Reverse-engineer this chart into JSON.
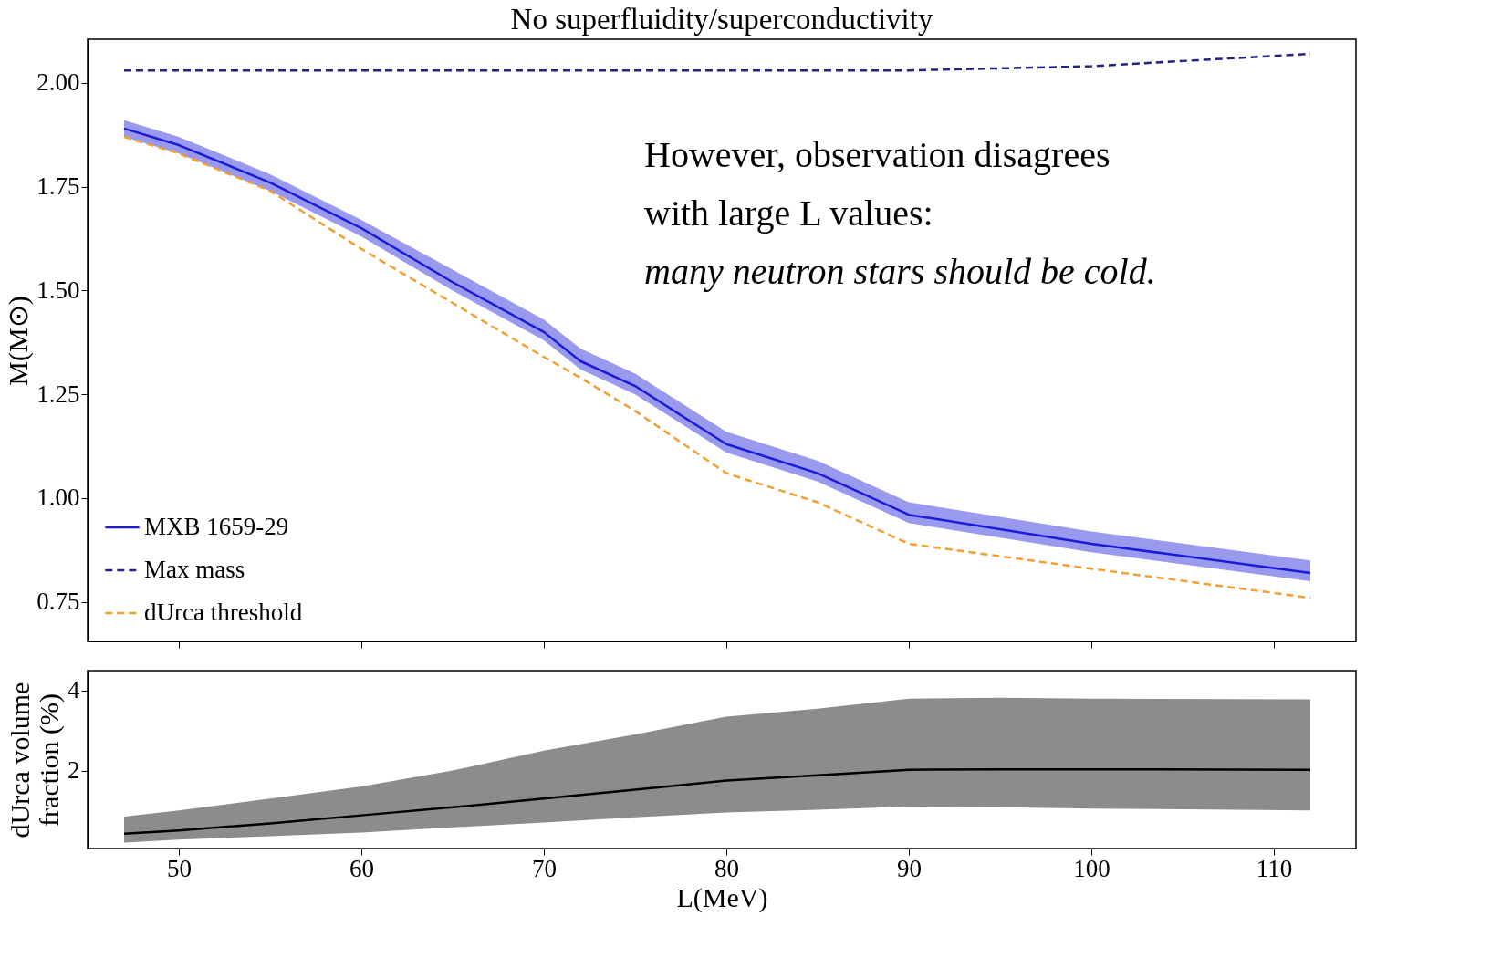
{
  "chart_data": [
    {
      "type": "line",
      "title": "No superfluidity/superconductivity",
      "ylabel": "M(M⊙)",
      "x": [
        47,
        50,
        55,
        60,
        65,
        70,
        72,
        75,
        80,
        85,
        90,
        100,
        112
      ],
      "series": [
        {
          "name": "MXB 1659-29",
          "color": "#1c1cd6",
          "line_style": "solid",
          "values": [
            1.89,
            1.85,
            1.76,
            1.65,
            1.52,
            1.4,
            1.33,
            1.27,
            1.13,
            1.06,
            0.96,
            0.89,
            0.82
          ],
          "lower": [
            1.87,
            1.83,
            1.74,
            1.63,
            1.5,
            1.38,
            1.31,
            1.25,
            1.11,
            1.04,
            0.94,
            0.87,
            0.8
          ],
          "upper": [
            1.91,
            1.87,
            1.78,
            1.67,
            1.55,
            1.43,
            1.36,
            1.3,
            1.16,
            1.09,
            0.99,
            0.92,
            0.85
          ]
        },
        {
          "name": "Max mass",
          "color": "#23237e",
          "line_style": "dashed",
          "values": [
            2.03,
            2.03,
            2.03,
            2.03,
            2.03,
            2.03,
            2.03,
            2.03,
            2.03,
            2.03,
            2.03,
            2.04,
            2.07
          ]
        },
        {
          "name": "dUrca threshold",
          "color": "#f0a035",
          "line_style": "dashed",
          "values": [
            1.87,
            1.83,
            1.74,
            1.6,
            1.47,
            1.34,
            1.29,
            1.21,
            1.06,
            0.99,
            0.89,
            0.83,
            0.76
          ]
        }
      ],
      "xlim": [
        45,
        114.5
      ],
      "xticks": [
        50,
        60,
        70,
        80,
        90,
        100,
        110
      ],
      "ylim": [
        0.655,
        2.105
      ],
      "yticks": [
        {
          "value": 0.75,
          "label": "0.75"
        },
        {
          "value": 1.0,
          "label": "1.00"
        },
        {
          "value": 1.25,
          "label": "1.25"
        },
        {
          "value": 1.5,
          "label": "1.50"
        },
        {
          "value": 1.75,
          "label": "1.75"
        },
        {
          "value": 2.0,
          "label": "2.00"
        }
      ],
      "tick_labels": "y",
      "legend": "bottom left",
      "grid": false,
      "annotations": [
        "However, observation disagrees",
        "with large L values:",
        "many neutron stars should be cold."
      ]
    },
    {
      "type": "line",
      "xlabel": "L(MeV)",
      "ylabel": "dUrca volume fraction (%)",
      "x": [
        47,
        50,
        55,
        60,
        65,
        70,
        75,
        80,
        85,
        90,
        95,
        100,
        112
      ],
      "series": [
        {
          "color": "#000000",
          "line_style": "solid",
          "values": [
            0.42,
            0.5,
            0.68,
            0.88,
            1.08,
            1.3,
            1.52,
            1.75,
            1.88,
            2.02,
            2.03,
            2.03,
            2.02
          ],
          "lower": [
            0.2,
            0.27,
            0.36,
            0.45,
            0.58,
            0.7,
            0.83,
            0.95,
            1.02,
            1.1,
            1.08,
            1.05,
            1.0
          ],
          "upper": [
            0.85,
            1.0,
            1.3,
            1.6,
            2.0,
            2.5,
            2.9,
            3.35,
            3.55,
            3.8,
            3.82,
            3.8,
            3.78
          ]
        }
      ],
      "xlim": [
        45,
        114.5
      ],
      "xticks": [
        50,
        60,
        70,
        80,
        90,
        100,
        110
      ],
      "ylim": [
        0.05,
        4.5
      ],
      "yticks": [
        2,
        4
      ],
      "grid": false
    }
  ]
}
